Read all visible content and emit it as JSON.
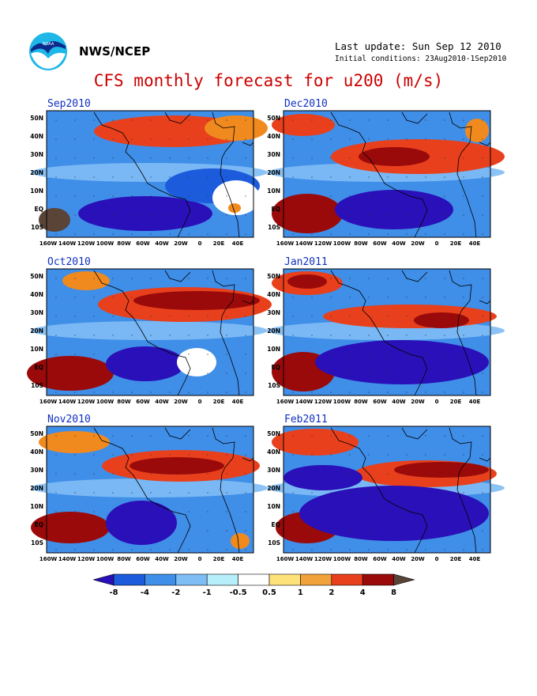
{
  "header": {
    "org": "NWS/NCEP",
    "last_update": "Last update: Sun Sep 12 2010",
    "initial_conditions": "Initial conditions: 23Aug2010-1Sep2010"
  },
  "title": "CFS monthly forecast for u200 (m/s)",
  "map": {
    "lat_labels": [
      "50N",
      "40N",
      "30N",
      "20N",
      "10N",
      "EQ",
      "10S"
    ],
    "lon_labels": [
      "160W",
      "140W",
      "120W",
      "100W",
      "80W",
      "60W",
      "40W",
      "20W",
      "0",
      "20E",
      "40E"
    ]
  },
  "panels": [
    {
      "label": "Sep2010",
      "col": 0,
      "row": 0,
      "blobs": [
        {
          "c": "#9b0a0a",
          "cx": 145,
          "cy": 24,
          "rx": 55,
          "ry": 12
        },
        {
          "c": "#e8401c",
          "cx": 160,
          "cy": 26,
          "rx": 100,
          "ry": 20
        },
        {
          "c": "#f08a1e",
          "cx": 240,
          "cy": 22,
          "rx": 40,
          "ry": 16
        },
        {
          "c": "#2a10b8",
          "cx": 125,
          "cy": 130,
          "rx": 85,
          "ry": 22
        },
        {
          "c": "#1c5cdc",
          "cx": 210,
          "cy": 95,
          "rx": 60,
          "ry": 22
        },
        {
          "c": "#5a4438",
          "cx": 10,
          "cy": 138,
          "rx": 20,
          "ry": 15
        },
        {
          "c": "#ffffff",
          "cx": 240,
          "cy": 110,
          "rx": 30,
          "ry": 22
        },
        {
          "c": "#f08a1e",
          "cx": 238,
          "cy": 123,
          "rx": 8,
          "ry": 6
        }
      ]
    },
    {
      "label": "Oct2010",
      "col": 0,
      "row": 1,
      "blobs": [
        {
          "c": "#e8401c",
          "cx": 175,
          "cy": 45,
          "rx": 110,
          "ry": 22
        },
        {
          "c": "#9b0a0a",
          "cx": 190,
          "cy": 40,
          "rx": 80,
          "ry": 12
        },
        {
          "c": "#5a4438",
          "cx": 22,
          "cy": 135,
          "rx": 40,
          "ry": 16
        },
        {
          "c": "#9b0a0a",
          "cx": 30,
          "cy": 132,
          "rx": 55,
          "ry": 22
        },
        {
          "c": "#2a10b8",
          "cx": 125,
          "cy": 120,
          "rx": 50,
          "ry": 22
        },
        {
          "c": "#f08a1e",
          "cx": 50,
          "cy": 15,
          "rx": 30,
          "ry": 12
        },
        {
          "c": "#ffffff",
          "cx": 190,
          "cy": 118,
          "rx": 25,
          "ry": 18
        }
      ]
    },
    {
      "label": "Nov2010",
      "col": 0,
      "row": 2,
      "blobs": [
        {
          "c": "#e8401c",
          "cx": 170,
          "cy": 50,
          "rx": 100,
          "ry": 20
        },
        {
          "c": "#9b0a0a",
          "cx": 165,
          "cy": 50,
          "rx": 60,
          "ry": 11
        },
        {
          "c": "#5a4438",
          "cx": 25,
          "cy": 130,
          "rx": 30,
          "ry": 12
        },
        {
          "c": "#9b0a0a",
          "cx": 30,
          "cy": 128,
          "rx": 50,
          "ry": 20
        },
        {
          "c": "#f08a1e",
          "cx": 35,
          "cy": 20,
          "rx": 45,
          "ry": 14
        },
        {
          "c": "#2a10b8",
          "cx": 120,
          "cy": 122,
          "rx": 45,
          "ry": 28
        },
        {
          "c": "#f08a1e",
          "cx": 245,
          "cy": 145,
          "rx": 12,
          "ry": 10
        }
      ]
    },
    {
      "label": "Dec2010",
      "col": 1,
      "row": 0,
      "blobs": [
        {
          "c": "#e8401c",
          "cx": 170,
          "cy": 58,
          "rx": 110,
          "ry": 22
        },
        {
          "c": "#9b0a0a",
          "cx": 140,
          "cy": 58,
          "rx": 45,
          "ry": 12
        },
        {
          "c": "#5a4438",
          "cx": 25,
          "cy": 130,
          "rx": 30,
          "ry": 15
        },
        {
          "c": "#9b0a0a",
          "cx": 30,
          "cy": 130,
          "rx": 45,
          "ry": 25
        },
        {
          "c": "#2a10b8",
          "cx": 140,
          "cy": 125,
          "rx": 75,
          "ry": 25
        },
        {
          "c": "#e8401c",
          "cx": 25,
          "cy": 18,
          "rx": 40,
          "ry": 14
        },
        {
          "c": "#f08a1e",
          "cx": 245,
          "cy": 25,
          "rx": 15,
          "ry": 15
        }
      ]
    },
    {
      "label": "Jan2011",
      "col": 1,
      "row": 1,
      "blobs": [
        {
          "c": "#e8401c",
          "cx": 160,
          "cy": 60,
          "rx": 110,
          "ry": 15
        },
        {
          "c": "#9b0a0a",
          "cx": 200,
          "cy": 65,
          "rx": 35,
          "ry": 10
        },
        {
          "c": "#5a4438",
          "cx": 20,
          "cy": 130,
          "rx": 25,
          "ry": 18
        },
        {
          "c": "#9b0a0a",
          "cx": 25,
          "cy": 130,
          "rx": 40,
          "ry": 25
        },
        {
          "c": "#2a10b8",
          "cx": 150,
          "cy": 118,
          "rx": 110,
          "ry": 28
        },
        {
          "c": "#e8401c",
          "cx": 30,
          "cy": 18,
          "rx": 45,
          "ry": 15
        },
        {
          "c": "#9b0a0a",
          "cx": 30,
          "cy": 16,
          "rx": 25,
          "ry": 9
        }
      ]
    },
    {
      "label": "Feb2011",
      "col": 1,
      "row": 2,
      "blobs": [
        {
          "c": "#e8401c",
          "cx": 180,
          "cy": 60,
          "rx": 90,
          "ry": 17
        },
        {
          "c": "#9b0a0a",
          "cx": 200,
          "cy": 55,
          "rx": 60,
          "ry": 10
        },
        {
          "c": "#5a4438",
          "cx": 25,
          "cy": 128,
          "rx": 25,
          "ry": 12
        },
        {
          "c": "#9b0a0a",
          "cx": 30,
          "cy": 128,
          "rx": 40,
          "ry": 20
        },
        {
          "c": "#2a10b8",
          "cx": 140,
          "cy": 110,
          "rx": 120,
          "ry": 35
        },
        {
          "c": "#2a10b8",
          "cx": 50,
          "cy": 65,
          "rx": 50,
          "ry": 16
        },
        {
          "c": "#9b0a0a",
          "cx": 35,
          "cy": 18,
          "rx": 40,
          "ry": 12
        },
        {
          "c": "#e8401c",
          "cx": 40,
          "cy": 20,
          "rx": 55,
          "ry": 17
        }
      ]
    }
  ],
  "colorbar": {
    "labels": [
      "-8",
      "-4",
      "-2",
      "-1",
      "-0.5",
      "0.5",
      "1",
      "2",
      "4",
      "8"
    ],
    "colors": [
      "#2a10b8",
      "#1c5cdc",
      "#3f8ee8",
      "#7fbdf5",
      "#b6eefa",
      "#ffffff",
      "#fde27a",
      "#f2a23a",
      "#e8401c",
      "#9b0a0a",
      "#5a4438"
    ]
  },
  "colors": {
    "title_color": "#cc0000",
    "panel_label_color": "#1030c0",
    "background_field": "#3f8ee8"
  }
}
